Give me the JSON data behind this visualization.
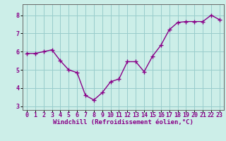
{
  "x": [
    0,
    1,
    2,
    3,
    4,
    5,
    6,
    7,
    8,
    9,
    10,
    11,
    12,
    13,
    14,
    15,
    16,
    17,
    18,
    19,
    20,
    21,
    22,
    23
  ],
  "y": [
    5.9,
    5.9,
    6.0,
    6.1,
    5.5,
    5.0,
    4.85,
    3.6,
    3.35,
    3.75,
    4.35,
    4.5,
    5.45,
    5.45,
    4.9,
    5.75,
    6.35,
    7.2,
    7.6,
    7.65,
    7.65,
    7.65,
    8.0,
    7.75
  ],
  "line_color": "#880088",
  "marker": "+",
  "marker_size": 4,
  "line_width": 1.0,
  "bg_color": "#cceee8",
  "grid_color": "#99cccc",
  "xlabel": "Windchill (Refroidissement éolien,°C)",
  "xlabel_fontsize": 6.5,
  "tick_fontsize": 6.0,
  "ylim": [
    2.8,
    8.6
  ],
  "yticks": [
    3,
    4,
    5,
    6,
    7,
    8
  ],
  "xticks": [
    0,
    1,
    2,
    3,
    4,
    5,
    6,
    7,
    8,
    9,
    10,
    11,
    12,
    13,
    14,
    15,
    16,
    17,
    18,
    19,
    20,
    21,
    22,
    23
  ]
}
